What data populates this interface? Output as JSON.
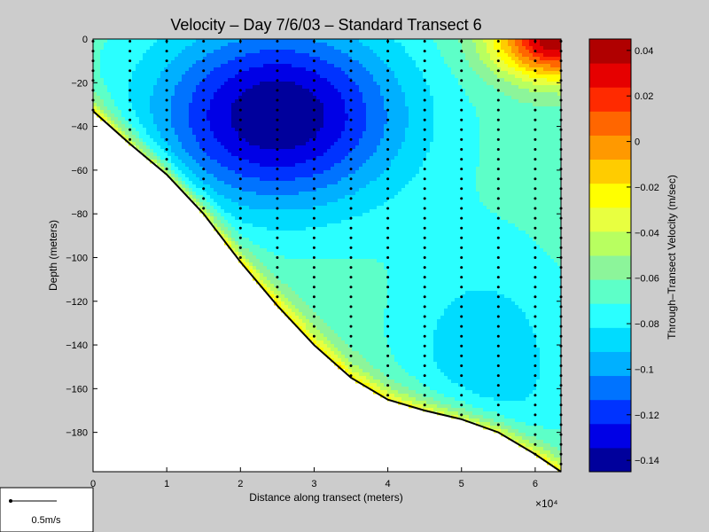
{
  "chart_data": {
    "type": "heatmap",
    "title": "Velocity – Day 7/6/03 – Standard Transect 6",
    "xlabel": "Distance along transect (meters)",
    "ylabel": "Depth (meters)",
    "x_exponent_label": "×10⁴",
    "xlim": [
      0,
      6.35
    ],
    "ylim": [
      -198,
      0
    ],
    "x_ticks": [
      "0",
      "1",
      "2",
      "3",
      "4",
      "5",
      "6"
    ],
    "y_ticks": [
      "0",
      "−20",
      "−40",
      "−60",
      "−80",
      "−100",
      "−120",
      "−140",
      "−160",
      "−180"
    ],
    "colorbar": {
      "label": "Through–Transect Velocity (m/sec)",
      "range": [
        -0.145,
        0.045
      ],
      "ticks": [
        "0.04",
        "0.02",
        "0",
        "−0.02",
        "−0.04",
        "−0.06",
        "−0.08",
        "−0.1",
        "−0.12",
        "−0.14"
      ],
      "colors": [
        "#00009c",
        "#0000e6",
        "#0033ff",
        "#0073ff",
        "#00b0ff",
        "#00dcff",
        "#2affff",
        "#5dffc8",
        "#8cf59a",
        "#b8ff60",
        "#e8ff40",
        "#ffff00",
        "#ffcc00",
        "#ff9900",
        "#ff6600",
        "#ff2a00",
        "#e60000",
        "#b00000"
      ]
    },
    "bathymetry": {
      "x": [
        0,
        0.5,
        1.0,
        1.5,
        2.0,
        2.5,
        3.0,
        3.5,
        4.0,
        4.5,
        5.0,
        5.5,
        6.0,
        6.35
      ],
      "depth": [
        -33,
        -48,
        -62,
        -80,
        -102,
        -122,
        -140,
        -155,
        -165,
        -170,
        -174,
        -180,
        -190,
        -198
      ]
    },
    "velocity_field": {
      "core": {
        "x": 2.5,
        "depth": -35,
        "value": -0.145
      },
      "background": -0.065,
      "surface_positive_zone": {
        "x": 6.3,
        "depth": 0,
        "value": 0.04
      }
    },
    "profile_stations_x": [
      0,
      0.5,
      1.0,
      1.5,
      2.0,
      2.5,
      3.0,
      3.5,
      4.0,
      4.5,
      5.0,
      5.5,
      6.0,
      6.35
    ]
  },
  "legend_box": {
    "label": "0.5m/s"
  }
}
